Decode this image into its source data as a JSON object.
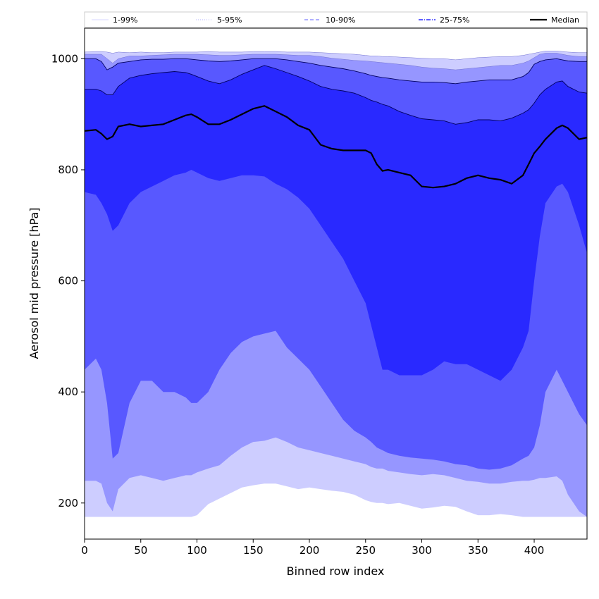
{
  "chart_data": {
    "type": "area",
    "title": "",
    "xlabel": "Binned row index",
    "ylabel": "Aerosol mid pressure [hPa]",
    "xlim": [
      0,
      447
    ],
    "ylim": [
      135,
      1055
    ],
    "xticks": [
      0,
      50,
      100,
      150,
      200,
      250,
      300,
      350,
      400
    ],
    "yticks": [
      200,
      400,
      600,
      800,
      1000
    ],
    "grid": false,
    "legend": {
      "placement": "top",
      "entries": [
        {
          "label": "1-99%",
          "style": "thin-solid",
          "color": "#c8c8ff"
        },
        {
          "label": "5-95%",
          "style": "thin-dotted",
          "color": "#9a9aff"
        },
        {
          "label": "10-90%",
          "style": "dashed",
          "color": "#8080ff"
        },
        {
          "label": "25-75%",
          "style": "dashdot",
          "color": "#2a2aff"
        },
        {
          "label": "Median",
          "style": "solid-thick",
          "color": "#000000"
        }
      ]
    },
    "x": [
      0,
      10,
      15,
      20,
      25,
      30,
      40,
      50,
      60,
      70,
      80,
      90,
      95,
      100,
      110,
      120,
      130,
      140,
      150,
      160,
      170,
      180,
      190,
      200,
      210,
      220,
      230,
      240,
      250,
      255,
      260,
      265,
      270,
      280,
      290,
      300,
      310,
      320,
      330,
      340,
      350,
      360,
      370,
      380,
      390,
      395,
      400,
      405,
      410,
      420,
      425,
      430,
      440,
      447
    ],
    "series": [
      {
        "name": "1-99%",
        "fill": "#cdcdff",
        "lower": [
          175,
          175,
          175,
          175,
          175,
          175,
          175,
          175,
          175,
          175,
          175,
          175,
          175,
          178,
          198,
          208,
          218,
          228,
          232,
          235,
          235,
          230,
          225,
          228,
          225,
          222,
          220,
          215,
          205,
          202,
          200,
          200,
          198,
          200,
          195,
          190,
          192,
          195,
          193,
          185,
          178,
          178,
          180,
          178,
          175,
          175,
          175,
          175,
          175,
          175,
          175,
          175,
          175,
          175
        ],
        "upper": [
          1012,
          1013,
          1013,
          1012,
          1010,
          1012,
          1011,
          1012,
          1011,
          1011,
          1012,
          1012,
          1012,
          1012,
          1013,
          1012,
          1012,
          1012,
          1013,
          1013,
          1013,
          1012,
          1012,
          1012,
          1011,
          1010,
          1009,
          1008,
          1006,
          1005,
          1005,
          1004,
          1004,
          1003,
          1002,
          1001,
          1000,
          1000,
          998,
          1000,
          1002,
          1003,
          1004,
          1004,
          1006,
          1008,
          1010,
          1012,
          1014,
          1014,
          1013,
          1012,
          1011,
          1011
        ]
      },
      {
        "name": "5-95%",
        "fill": "#9696ff",
        "lower": [
          240,
          240,
          235,
          200,
          185,
          225,
          245,
          250,
          245,
          240,
          245,
          250,
          250,
          255,
          262,
          268,
          285,
          300,
          310,
          312,
          318,
          310,
          300,
          295,
          290,
          285,
          280,
          275,
          270,
          265,
          262,
          262,
          258,
          255,
          252,
          250,
          252,
          250,
          245,
          240,
          238,
          235,
          235,
          238,
          240,
          240,
          242,
          245,
          245,
          248,
          240,
          215,
          185,
          175
        ],
        "upper": [
          1008,
          1008,
          1008,
          1000,
          992,
          1000,
          1005,
          1005,
          1006,
          1007,
          1008,
          1008,
          1008,
          1008,
          1007,
          1006,
          1006,
          1007,
          1008,
          1008,
          1008,
          1007,
          1006,
          1006,
          1004,
          1001,
          999,
          997,
          996,
          995,
          994,
          993,
          992,
          990,
          988,
          985,
          983,
          982,
          980,
          982,
          984,
          986,
          988,
          988,
          992,
          996,
          1002,
          1008,
          1010,
          1010,
          1008,
          1006,
          1004,
          1004
        ]
      },
      {
        "name": "10-90%",
        "fill": "#5858ff",
        "lower": [
          440,
          460,
          440,
          380,
          280,
          290,
          380,
          420,
          420,
          400,
          400,
          390,
          380,
          380,
          400,
          440,
          470,
          490,
          500,
          505,
          510,
          480,
          460,
          440,
          410,
          380,
          350,
          330,
          318,
          310,
          300,
          295,
          290,
          285,
          282,
          280,
          278,
          275,
          270,
          268,
          262,
          260,
          262,
          268,
          280,
          285,
          300,
          340,
          400,
          440,
          420,
          400,
          360,
          340
        ],
        "upper": [
          1000,
          1000,
          995,
          980,
          985,
          992,
          995,
          998,
          999,
          999,
          1000,
          1000,
          999,
          998,
          996,
          995,
          996,
          998,
          1000,
          1000,
          1000,
          998,
          995,
          992,
          988,
          985,
          982,
          978,
          973,
          970,
          968,
          966,
          965,
          962,
          960,
          958,
          958,
          957,
          955,
          958,
          960,
          962,
          962,
          962,
          968,
          975,
          990,
          995,
          998,
          1000,
          998,
          996,
          995,
          995
        ]
      },
      {
        "name": "25-75%",
        "fill": "#2929ff",
        "lower": [
          760,
          755,
          740,
          720,
          690,
          700,
          740,
          760,
          770,
          780,
          790,
          795,
          800,
          795,
          785,
          780,
          785,
          790,
          790,
          788,
          775,
          765,
          750,
          730,
          700,
          670,
          640,
          600,
          560,
          520,
          480,
          440,
          440,
          430,
          430,
          430,
          440,
          455,
          450,
          450,
          440,
          430,
          420,
          440,
          480,
          510,
          600,
          680,
          740,
          770,
          775,
          760,
          700,
          650
        ],
        "upper": [
          945,
          945,
          942,
          935,
          935,
          950,
          965,
          970,
          973,
          975,
          977,
          975,
          972,
          968,
          960,
          955,
          962,
          972,
          980,
          988,
          982,
          975,
          968,
          960,
          950,
          945,
          942,
          938,
          930,
          925,
          922,
          918,
          915,
          905,
          898,
          892,
          890,
          888,
          882,
          885,
          890,
          890,
          888,
          893,
          902,
          908,
          920,
          935,
          945,
          958,
          960,
          950,
          940,
          938
        ]
      },
      {
        "name": "Median",
        "line": "#000000",
        "values": [
          870,
          872,
          865,
          855,
          860,
          878,
          882,
          878,
          880,
          882,
          890,
          898,
          900,
          895,
          882,
          882,
          890,
          900,
          910,
          915,
          905,
          895,
          880,
          872,
          845,
          838,
          835,
          835,
          835,
          830,
          810,
          798,
          800,
          795,
          790,
          770,
          768,
          770,
          775,
          785,
          790,
          785,
          782,
          775,
          790,
          810,
          830,
          842,
          855,
          875,
          880,
          875,
          855,
          858
        ]
      }
    ]
  }
}
